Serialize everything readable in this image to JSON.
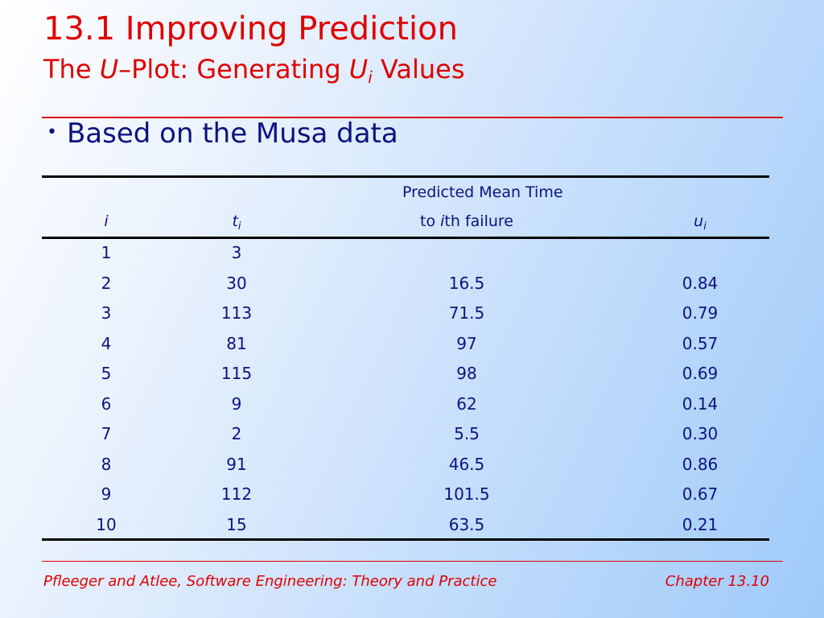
{
  "title": {
    "main": "13.1 Improving Prediction",
    "sub_the": "The",
    "sub_u": "U",
    "sub_dash": "–Plot:  Generating",
    "sub_u2": "U",
    "sub_i": "i",
    "sub_values": "Values"
  },
  "bullet": {
    "symbol": "•",
    "text": "Based on the Musa data"
  },
  "table": {
    "header": {
      "col1": "i",
      "col2_t": "t",
      "col2_sub": "i",
      "col3_line1": "Predicted Mean Time",
      "col3_line2_pre": "to ",
      "col3_line2_i": "i",
      "col3_line2_post": "th failure",
      "col4_u": "u",
      "col4_sub": "i"
    },
    "rows": [
      {
        "i": "1",
        "t": "3",
        "pred": "",
        "u": ""
      },
      {
        "i": "2",
        "t": "30",
        "pred": "16.5",
        "u": "0.84"
      },
      {
        "i": "3",
        "t": "113",
        "pred": "71.5",
        "u": "0.79"
      },
      {
        "i": "4",
        "t": "81",
        "pred": "97",
        "u": "0.57"
      },
      {
        "i": "5",
        "t": "115",
        "pred": "98",
        "u": "0.69"
      },
      {
        "i": "6",
        "t": "9",
        "pred": "62",
        "u": "0.14"
      },
      {
        "i": "7",
        "t": "2",
        "pred": "5.5",
        "u": "0.30"
      },
      {
        "i": "8",
        "t": "91",
        "pred": "46.5",
        "u": "0.86"
      },
      {
        "i": "9",
        "t": "112",
        "pred": "101.5",
        "u": "0.67"
      },
      {
        "i": "10",
        "t": "15",
        "pred": "63.5",
        "u": "0.21"
      }
    ]
  },
  "footer": {
    "left": "Pfleeger and Atlee, Software Engineering: Theory and Practice",
    "right": "Chapter 13.10"
  },
  "colors": {
    "title": "#e00000",
    "body_text": "#0b1380",
    "rules": "#000000"
  }
}
